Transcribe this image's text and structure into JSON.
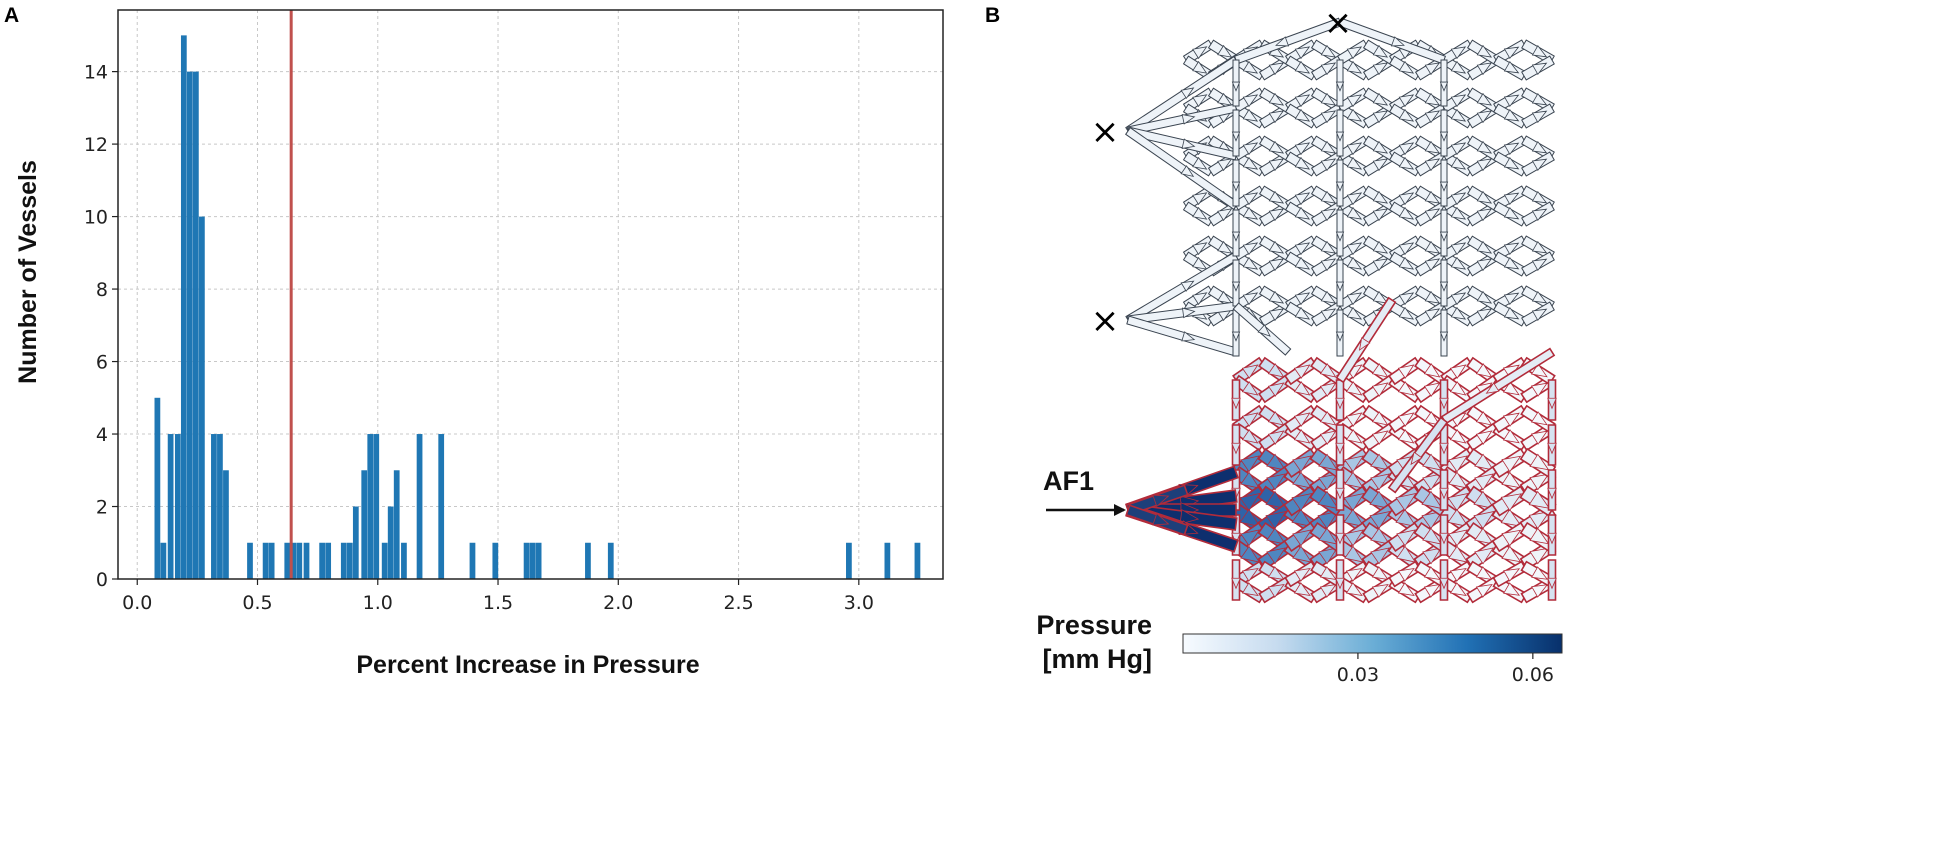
{
  "panels": {
    "a_label": "A",
    "b_label": "B"
  },
  "chart_data": {
    "type": "bar",
    "title": "",
    "xlabel": "Percent Increase in Pressure",
    "ylabel": "Number of Vessels",
    "xlim": [
      -0.08,
      3.35
    ],
    "ylim": [
      0,
      15.7
    ],
    "xticks": [
      0.0,
      0.5,
      1.0,
      1.5,
      2.0,
      2.5,
      3.0
    ],
    "xtick_labels": [
      "0.0",
      "0.5",
      "1.0",
      "1.5",
      "2.0",
      "2.5",
      "3.0"
    ],
    "yticks": [
      0,
      2,
      4,
      6,
      8,
      10,
      12,
      14
    ],
    "ytick_labels": [
      "0",
      "2",
      "4",
      "6",
      "8",
      "10",
      "12",
      "14"
    ],
    "grid": true,
    "bin_width": 0.0264,
    "bins": [
      {
        "x": 0.085,
        "count": 5
      },
      {
        "x": 0.11,
        "count": 1
      },
      {
        "x": 0.14,
        "count": 4
      },
      {
        "x": 0.17,
        "count": 4
      },
      {
        "x": 0.195,
        "count": 15
      },
      {
        "x": 0.22,
        "count": 14
      },
      {
        "x": 0.245,
        "count": 14
      },
      {
        "x": 0.27,
        "count": 10
      },
      {
        "x": 0.32,
        "count": 4
      },
      {
        "x": 0.345,
        "count": 4
      },
      {
        "x": 0.37,
        "count": 3
      },
      {
        "x": 0.47,
        "count": 1
      },
      {
        "x": 0.535,
        "count": 1
      },
      {
        "x": 0.56,
        "count": 1
      },
      {
        "x": 0.625,
        "count": 1
      },
      {
        "x": 0.65,
        "count": 1
      },
      {
        "x": 0.675,
        "count": 1
      },
      {
        "x": 0.705,
        "count": 1
      },
      {
        "x": 0.77,
        "count": 1
      },
      {
        "x": 0.795,
        "count": 1
      },
      {
        "x": 0.86,
        "count": 1
      },
      {
        "x": 0.885,
        "count": 1
      },
      {
        "x": 0.91,
        "count": 2
      },
      {
        "x": 0.945,
        "count": 3
      },
      {
        "x": 0.97,
        "count": 4
      },
      {
        "x": 0.995,
        "count": 4
      },
      {
        "x": 1.03,
        "count": 1
      },
      {
        "x": 1.055,
        "count": 2
      },
      {
        "x": 1.08,
        "count": 3
      },
      {
        "x": 1.11,
        "count": 1
      },
      {
        "x": 1.175,
        "count": 4
      },
      {
        "x": 1.265,
        "count": 4
      },
      {
        "x": 1.395,
        "count": 1
      },
      {
        "x": 1.49,
        "count": 1
      },
      {
        "x": 1.62,
        "count": 1
      },
      {
        "x": 1.645,
        "count": 1
      },
      {
        "x": 1.67,
        "count": 1
      },
      {
        "x": 1.875,
        "count": 1
      },
      {
        "x": 1.97,
        "count": 1
      },
      {
        "x": 2.96,
        "count": 1
      },
      {
        "x": 3.12,
        "count": 1
      },
      {
        "x": 3.245,
        "count": 1
      }
    ],
    "reference_line": {
      "x": 0.64,
      "color": "#c0504d"
    },
    "bar_color": "#1f77b4"
  },
  "network": {
    "inlet_label": "AF1",
    "inlet_arrow_color": "#000000",
    "occlusion_marker": "×",
    "occlusion_count": 3,
    "colors": {
      "perfused_edge": "#b22b3a",
      "low_pressure": "#f3f7fb",
      "high_pressure": "#0e2f6e"
    }
  },
  "colorbar": {
    "title_line1": "Pressure",
    "title_line2": "[mm Hg]",
    "min": 0.0,
    "max": 0.065,
    "ticks": [
      0.03,
      0.06
    ],
    "tick_labels": [
      "0.03",
      "0.06"
    ],
    "colors": [
      "#f7fbff",
      "#c6dbef",
      "#6baed6",
      "#2171b5",
      "#08306b"
    ]
  }
}
